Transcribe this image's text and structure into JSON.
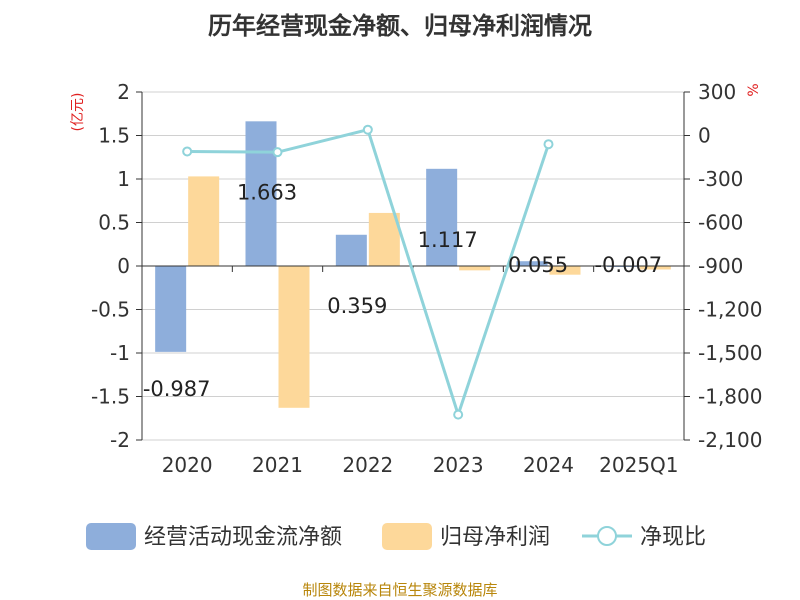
{
  "chart_data": {
    "type": "bar",
    "title": "历年经营现金净额、归母净利润情况",
    "categories": [
      "2020",
      "2021",
      "2022",
      "2023",
      "2024",
      "2025Q1"
    ],
    "series": [
      {
        "name": "经营活动现金流净额",
        "type": "bar",
        "axis": "left",
        "color": "#8eaedb",
        "values": [
          -0.987,
          1.663,
          0.359,
          1.117,
          0.055,
          -0.007
        ],
        "labels": [
          "-0.987",
          "1.663",
          "0.359",
          "1.117",
          "0.055",
          "-0.007"
        ]
      },
      {
        "name": "归母净利润",
        "type": "bar",
        "axis": "left",
        "color": "#fdd89a",
        "values": [
          1.03,
          -1.63,
          0.61,
          -0.05,
          -0.1,
          -0.04
        ]
      },
      {
        "name": "净现比",
        "type": "line",
        "axis": "right",
        "color": "#8fd3da",
        "values": [
          -110,
          -115,
          40,
          -1925,
          -60,
          null
        ]
      }
    ],
    "left_axis": {
      "unit": "(亿元)",
      "ylim": [
        -2,
        2
      ],
      "ticks": [
        2,
        1.5,
        1,
        0.5,
        0,
        -0.5,
        -1,
        -1.5,
        -2
      ],
      "tick_labels": [
        "2",
        "1.5",
        "1",
        "0.5",
        "0",
        "-0.5",
        "-1",
        "-1.5",
        "-2"
      ]
    },
    "right_axis": {
      "unit": "%",
      "ylim": [
        -2100,
        300
      ],
      "ticks": [
        300,
        0,
        -300,
        -600,
        -900,
        -1200,
        -1500,
        -1800,
        -2100
      ],
      "tick_labels": [
        "300",
        "0",
        "-300",
        "-600",
        "-900",
        "-1,200",
        "-1,500",
        "-1,800",
        "-2,100"
      ]
    },
    "grid": true,
    "legend_position": "bottom",
    "source": "制图数据来自恒生聚源数据库"
  }
}
